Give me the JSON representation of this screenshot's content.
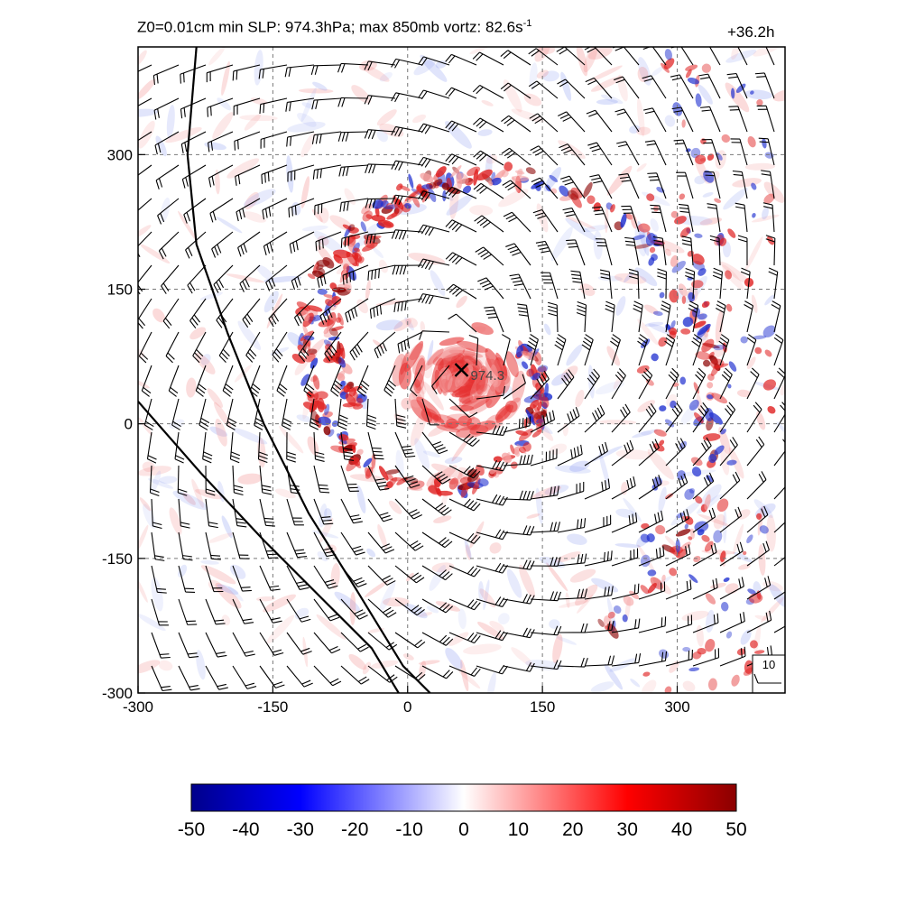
{
  "header": {
    "title_pre": "Z0=0.01cm  min SLP: 974.3hPa; max 850mb vortz:  82.6s",
    "title_exp": "-1",
    "forecast_hour": "+36.2h"
  },
  "center": {
    "label": "974.3",
    "x": 60,
    "y": 60
  },
  "barb_legend": {
    "label": "10"
  },
  "colors": {
    "negative_max": "#00008b",
    "negative_mid": "#0000ff",
    "zero": "#ffffff",
    "positive_mid": "#ff0000",
    "positive_max": "#8b0000"
  },
  "chart_data": {
    "type": "heatmap",
    "title": "Z0=0.01cm  min SLP: 974.3hPa; max 850mb vortz:  82.6s-1",
    "xlim": [
      -300,
      420
    ],
    "ylim": [
      -300,
      420
    ],
    "x_ticks": [
      -300,
      -150,
      0,
      150,
      300
    ],
    "y_ticks": [
      -300,
      -150,
      0,
      150,
      300
    ],
    "x_tick_labels": [
      "-300",
      "-150",
      "0",
      "150",
      "300"
    ],
    "y_tick_labels": [
      "-300",
      "-150",
      "0",
      "150",
      "300"
    ],
    "grid": true,
    "colorbar": {
      "range": [
        -50,
        50
      ],
      "ticks": [
        -50,
        -40,
        -30,
        -20,
        -10,
        0,
        10,
        20,
        30,
        40,
        50
      ],
      "tick_labels": [
        "-50",
        "-40",
        "-30",
        "-20",
        "-10",
        "0",
        "10",
        "20",
        "30",
        "40",
        "50"
      ],
      "colormap": "blue-white-red"
    },
    "storm_center": {
      "x": 60,
      "y": 60,
      "min_slp_hPa": 974.3
    },
    "max_vorticity": 82.6,
    "coastlines": [
      [
        [
          -235,
          420
        ],
        [
          -245,
          300
        ],
        [
          -235,
          200
        ],
        [
          -200,
          100
        ],
        [
          -160,
          0
        ],
        [
          -110,
          -100
        ],
        [
          -60,
          -180
        ],
        [
          -5,
          -270
        ],
        [
          25,
          -300
        ]
      ],
      [
        [
          -300,
          25
        ],
        [
          -230,
          -55
        ],
        [
          -160,
          -130
        ],
        [
          -90,
          -200
        ],
        [
          -40,
          -250
        ],
        [
          -10,
          -300
        ]
      ]
    ]
  }
}
